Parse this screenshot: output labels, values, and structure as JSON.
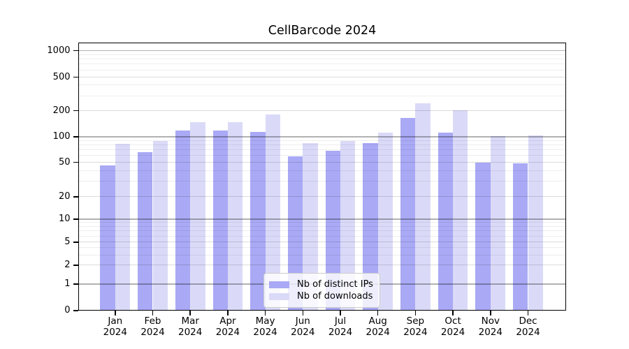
{
  "title": "CellBarcode 2024",
  "chart_data": {
    "type": "bar",
    "title": "CellBarcode 2024",
    "categories": [
      "Jan",
      "Feb",
      "Mar",
      "Apr",
      "May",
      "Jun",
      "Jul",
      "Aug",
      "Sep",
      "Oct",
      "Nov",
      "Dec"
    ],
    "x_year_label": "2024",
    "series": [
      {
        "name": "Nb of distinct IPs",
        "color": "#a9a9f5",
        "values": [
          46,
          66,
          118,
          118,
          113,
          59,
          68,
          85,
          164,
          112,
          50,
          49
        ]
      },
      {
        "name": "Nb of downloads",
        "color": "#dadaf8",
        "values": [
          83,
          90,
          147,
          148,
          181,
          84,
          90,
          112,
          243,
          201,
          101,
          103
        ]
      }
    ],
    "yscale": "symlog",
    "ylim": [
      0,
      1400
    ],
    "y_tick_values": [
      0,
      1,
      2,
      5,
      10,
      20,
      50,
      100,
      200,
      500,
      1000
    ],
    "y_tick_labels": [
      "0",
      "1",
      "2",
      "5",
      "10",
      "20",
      "50",
      "100",
      "200",
      "500",
      "1000"
    ],
    "grid": "on",
    "legend_position": "lower center",
    "axis_color": "#000000",
    "grid_major_color": "#b2b2b2",
    "grid_minor_color": "#ebebeb"
  }
}
